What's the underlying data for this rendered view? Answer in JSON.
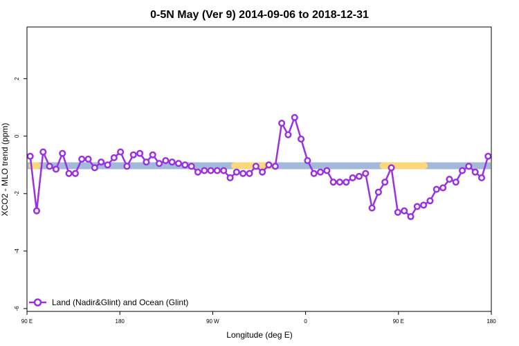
{
  "chart_data": {
    "type": "line",
    "title": "0-5N May (Ver 9)   2014-09-06 to 2018-12-31",
    "xlabel": "Longitude (deg E)",
    "ylabel": "XCO2 - MLO trend (ppm)",
    "xlim": [
      90,
      450
    ],
    "ylim": [
      -6.1,
      3.8
    ],
    "xticks": [
      {
        "value": 90,
        "label": "90 E"
      },
      {
        "value": 180,
        "label": "180"
      },
      {
        "value": 270,
        "label": "90 W"
      },
      {
        "value": 360,
        "label": "0"
      },
      {
        "value": 450,
        "label": "90 E"
      },
      {
        "value": 540,
        "label": "180"
      }
    ],
    "yticks": [
      {
        "value": -6,
        "label": "-6"
      },
      {
        "value": -4,
        "label": "-4"
      },
      {
        "value": -2,
        "label": "-2"
      },
      {
        "value": 0,
        "label": "0"
      },
      {
        "value": 2,
        "label": "2"
      }
    ],
    "grid": false,
    "legend_position": "bottom-left",
    "surface_band": {
      "y": -1.03,
      "ocean_color": "#a3b9d9",
      "land_color": "#f9d77a",
      "land_segments": [
        [
          94,
          98
        ],
        [
          251,
          282
        ],
        [
          366,
          398
        ]
      ]
    },
    "series": [
      {
        "name": "Land (Nadir&Glint) and Ocean (Glint)",
        "color": "#9b30e0",
        "x": [
          92.5,
          97.5,
          102.5,
          107.5,
          112.5,
          117.5,
          122.5,
          127.5,
          132.5,
          137.5,
          142.5,
          147.5,
          152.5,
          157.5,
          162.5,
          167.5,
          172.5,
          177.5,
          182.5,
          187.5,
          192.5,
          197.5,
          202.5,
          207.5,
          212.5,
          217.5,
          222.5,
          227.5,
          232.5,
          237.5,
          242.5,
          247.5,
          252.5,
          257.5,
          262.5,
          267.5,
          272.5,
          277.5,
          282.5,
          287.5,
          292.5,
          297.5,
          302.5,
          307.5,
          312.5,
          317.5,
          322.5,
          327.5,
          332.5,
          337.5,
          342.5,
          347.5,
          352.5,
          357.5,
          362.5,
          367.5,
          372.5,
          377.5,
          382.5,
          387.5,
          392.5,
          397.5,
          402.5,
          407.5,
          412.5,
          417.5,
          422.5,
          427.5,
          432.5,
          437.5,
          442.5,
          447.5
        ],
        "y": [
          -0.7,
          -2.6,
          -0.55,
          -1.05,
          -1.15,
          -0.6,
          -1.3,
          -1.3,
          -0.8,
          -0.8,
          -1.1,
          -0.9,
          -1.0,
          -0.75,
          -0.55,
          -1.05,
          -0.65,
          -0.6,
          -0.9,
          -0.65,
          -0.95,
          -0.85,
          -0.9,
          -0.95,
          -1.0,
          -1.05,
          -1.25,
          -1.2,
          -1.2,
          -1.2,
          -1.2,
          -1.45,
          -1.25,
          -1.3,
          -1.3,
          -1.05,
          -1.25,
          -1.0,
          -1.05,
          0.45,
          0.05,
          0.65,
          -0.1,
          -0.85,
          -1.3,
          -1.25,
          -1.2,
          -1.6,
          -1.6,
          -1.6,
          -1.45,
          -1.4,
          -1.3,
          -2.5,
          -1.95,
          -1.6,
          -1.1,
          -2.65,
          -2.6,
          -2.8,
          -2.45,
          -2.4,
          -2.25,
          -1.85,
          -1.8,
          -1.5,
          -1.6,
          -1.2,
          -1.05,
          -1.25,
          -1.45,
          -0.7
        ]
      }
    ]
  }
}
